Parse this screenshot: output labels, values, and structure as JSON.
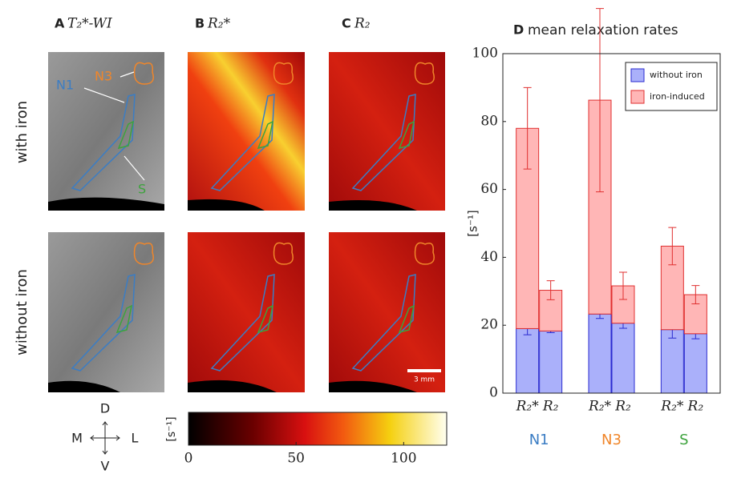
{
  "chart_data": {
    "type": "stacked_bar",
    "title": "mean relaxation rates",
    "panel_letter": "D",
    "ylabel": "[s⁻¹]",
    "categories": [
      "R₂*",
      "R₂",
      "R₂*",
      "R₂",
      "R₂*",
      "R₂"
    ],
    "groups": [
      {
        "name": "N1",
        "color": "#3b7dc4"
      },
      {
        "name": "N3",
        "color": "#f0862a"
      },
      {
        "name": "S",
        "color": "#3da33d"
      }
    ],
    "series": [
      {
        "name": "without iron",
        "color": "#aab0fa",
        "edgecolor": "#2b2bd0",
        "values": [
          19,
          18.3,
          23.3,
          20.6,
          18.7,
          17.5
        ],
        "errors": [
          1.8,
          0.5,
          1.3,
          1.5,
          2.5,
          1.5
        ]
      },
      {
        "name": "iron-induced",
        "color": "#ffb6b6",
        "edgecolor": "#e03030",
        "values": [
          59,
          12,
          63,
          11,
          24.6,
          11.5
        ],
        "errors": [
          12,
          2.8,
          27,
          4,
          5.5,
          2.7
        ]
      }
    ],
    "ylim": [
      0,
      100
    ],
    "yticks": [
      0,
      20,
      40,
      60,
      80,
      100
    ],
    "legend": "upper right"
  },
  "panels": [
    {
      "letter": "A",
      "title": "T₂*-WI"
    },
    {
      "letter": "B",
      "title": "R₂*"
    },
    {
      "letter": "C",
      "title": "R₂"
    }
  ],
  "rows": [
    "with iron",
    "without iron"
  ],
  "roi_labels": [
    "N1",
    "N3",
    "S"
  ],
  "scale_bar": "3 mm",
  "orientation": {
    "up": "D",
    "down": "V",
    "left": "M",
    "right": "L"
  },
  "colorbar": {
    "label": "[s⁻¹]",
    "lim": [
      0,
      120
    ],
    "ticks": [
      0,
      50,
      100
    ]
  }
}
